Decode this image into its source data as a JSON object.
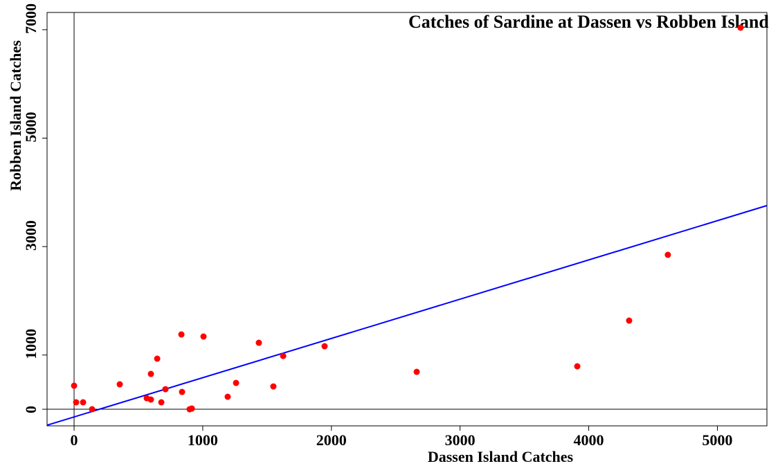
{
  "chart_data": {
    "type": "scatter",
    "title": "Catches of Sardine at Dassen vs Robben Island",
    "x_label": "Dassen Island Catches",
    "y_label": "Robben Island Catches",
    "series": [
      {
        "name": "Catches",
        "color": "#ff0000",
        "x": [
          0,
          16,
          70,
          140,
          355,
          565,
          597,
          597,
          646,
          678,
          710,
          834,
          839,
          898,
          915,
          1006,
          1194,
          1259,
          1436,
          1549,
          1625,
          1947,
          2663,
          3911,
          4314,
          4615,
          5180
        ],
        "values": [
          434,
          128,
          128,
          0,
          460,
          204,
          179,
          651,
          932,
          128,
          370,
          1379,
          319,
          0,
          13,
          1341,
          230,
          485,
          1226,
          421,
          983,
          1162,
          690,
          792,
          1635,
          2848,
          7037
        ]
      }
    ],
    "fit": {
      "intercept": -142,
      "slope": 0.724,
      "color": "#0000ff"
    },
    "xlim": [
      -210,
      5385
    ],
    "ylim": [
      -306,
      7318
    ],
    "xticks": [
      0,
      1000,
      2000,
      3000,
      4000,
      5000
    ],
    "yticks": [
      0,
      1000,
      3000,
      5000,
      7000
    ]
  }
}
